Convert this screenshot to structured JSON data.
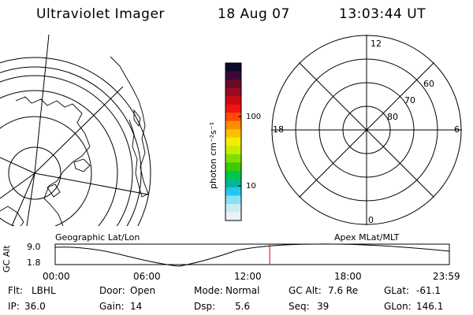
{
  "header": {
    "instrument": "Ultraviolet Imager",
    "date": "18 Aug 07",
    "time": "13:03:44 UT"
  },
  "colorbar": {
    "unit_label": "photon cm⁻²s⁻¹",
    "tick_labels": [
      "100",
      "10"
    ],
    "colors": [
      "#0b0b28",
      "#3a0a36",
      "#6a0a28",
      "#9a0a1e",
      "#c80a14",
      "#ef1414",
      "#ff4a00",
      "#ff8c00",
      "#ffc000",
      "#f4ee00",
      "#c4ee00",
      "#7ee000",
      "#3ccc00",
      "#00c646",
      "#00b898",
      "#27c5ee",
      "#88e0f4",
      "#c8ecf4",
      "#e8f2f2"
    ]
  },
  "left_map": {
    "panel_label": "Geographic Lat/Lon"
  },
  "right_grid": {
    "panel_label": "Apex MLat/MLT",
    "mlt_labels": {
      "top": "12",
      "bottom": "0",
      "left": "18",
      "right": "6"
    },
    "mlat_labels": [
      "60",
      "70",
      "80"
    ]
  },
  "timeline": {
    "ylabel": "GC Alt",
    "y_ticks": [
      "9.0",
      "1.8"
    ],
    "x_ticks": [
      "00:00",
      "06:00",
      "12:00",
      "18:00",
      "23:59"
    ],
    "current_time_hours": 13.06,
    "marker_color": "#e00000"
  },
  "footer": {
    "rows": [
      [
        {
          "label": "Flt:",
          "value": "LBHL"
        },
        {
          "label": "Door:",
          "value": "Open"
        },
        {
          "label": "Mode:",
          "value": "Normal"
        },
        {
          "label": "GC Alt:",
          "value": "7.6 Re"
        },
        {
          "label": "GLat:",
          "value": "-61.1"
        }
      ],
      [
        {
          "label": "IP:",
          "value": "36.0"
        },
        {
          "label": "Gain:",
          "value": "14"
        },
        {
          "label": "Dsp:",
          "value": "5.6"
        },
        {
          "label": "Seq:",
          "value": "39"
        },
        {
          "label": "GLon:",
          "value": "146.1"
        }
      ]
    ]
  }
}
